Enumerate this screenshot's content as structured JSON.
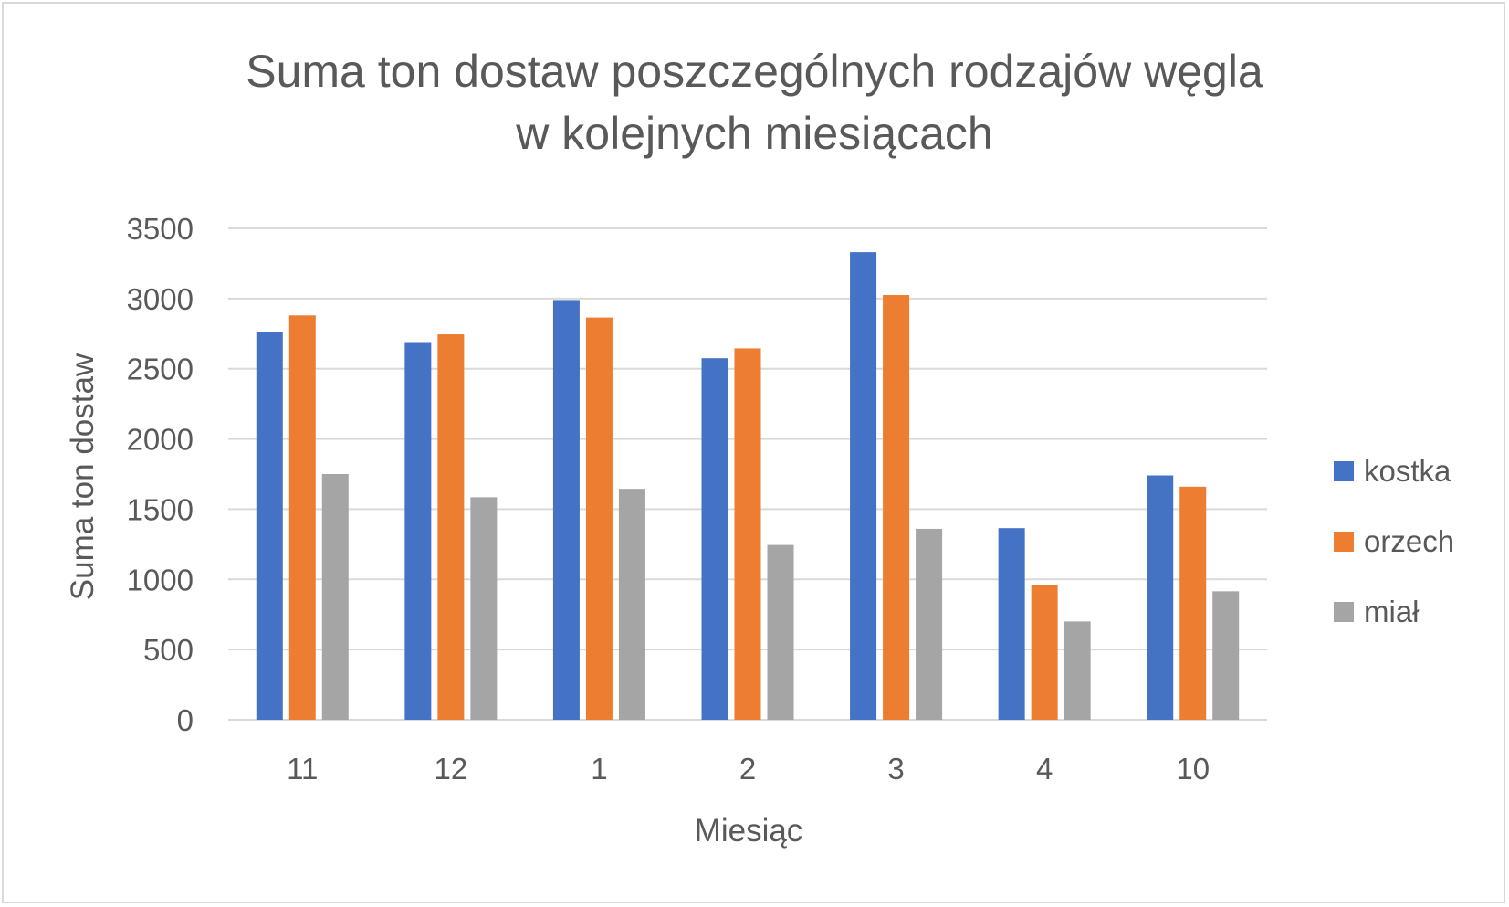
{
  "chart_data": {
    "type": "bar",
    "title_lines": [
      "Suma ton dostaw poszczególnych rodzajów węgla",
      "w kolejnych miesiącach"
    ],
    "xlabel": "Miesiąc",
    "ylabel": "Suma ton dostaw",
    "ylim": [
      0,
      3500
    ],
    "yticks": [
      "0",
      "500",
      "1000",
      "1500",
      "2000",
      "2500",
      "3000",
      "3500"
    ],
    "grid": true,
    "legend_position": "right",
    "categories": [
      "11",
      "12",
      "1",
      "2",
      "3",
      "4",
      "10"
    ],
    "series": [
      {
        "name": "kostka",
        "color": "#4472c4",
        "values": [
          2760,
          2690,
          2990,
          2575,
          3330,
          1365,
          1740
        ]
      },
      {
        "name": "orzech",
        "color": "#ed7d31",
        "values": [
          2880,
          2745,
          2865,
          2645,
          3025,
          960,
          1660
        ]
      },
      {
        "name": "miał",
        "color": "#a5a5a5",
        "values": [
          1750,
          1585,
          1645,
          1245,
          1360,
          700,
          915
        ]
      }
    ]
  }
}
